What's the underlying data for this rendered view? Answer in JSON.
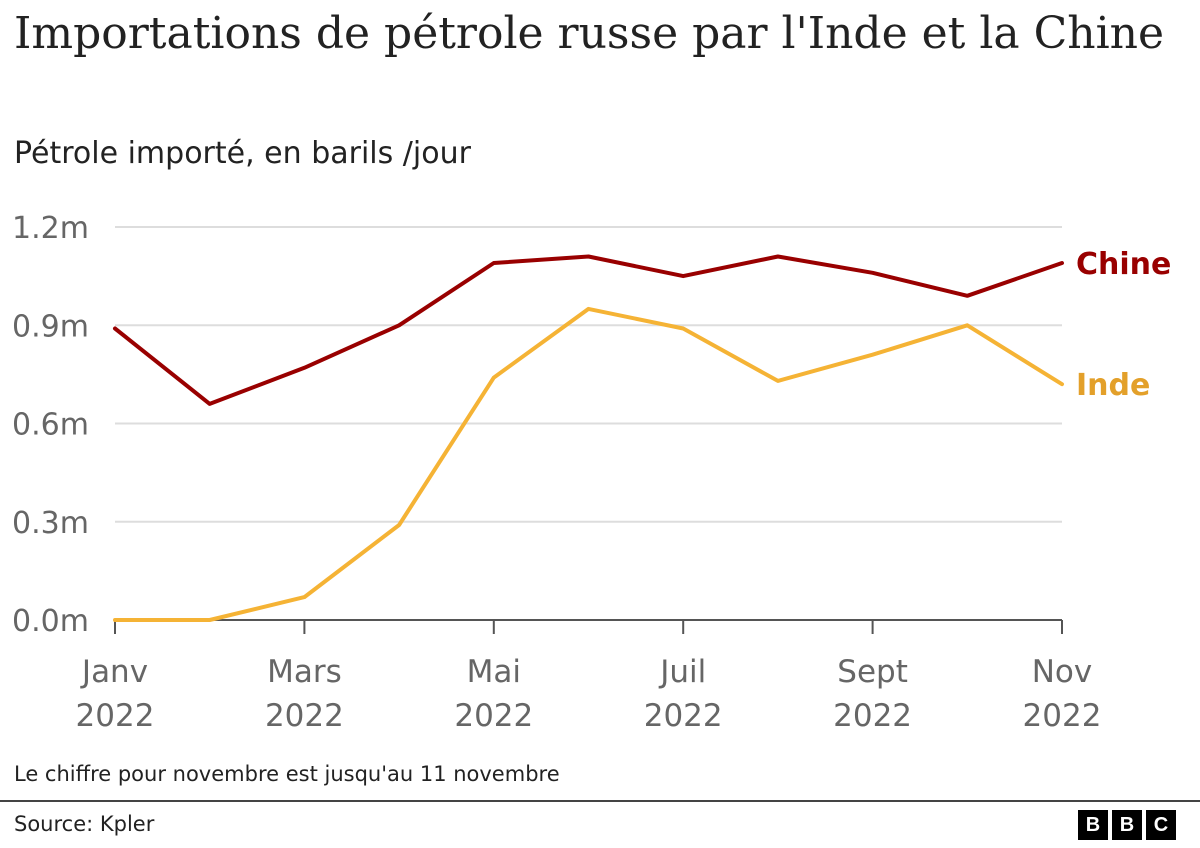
{
  "title": "Importations de pétrole russe par l'Inde et la Chine",
  "subtitle": "Pétrole importé, en barils /jour",
  "note": "Le chiffre pour novembre est jusqu'au 11 novembre",
  "source": "Source: Kpler",
  "logo": [
    "B",
    "B",
    "C"
  ],
  "chart_data": {
    "type": "line",
    "x": [
      "2022-01",
      "2022-02",
      "2022-03",
      "2022-04",
      "2022-05",
      "2022-06",
      "2022-07",
      "2022-08",
      "2022-09",
      "2022-10",
      "2022-11"
    ],
    "xticks": [
      {
        "month": "2022-01",
        "label1": "Janv",
        "label2": "2022"
      },
      {
        "month": "2022-03",
        "label1": "Mars",
        "label2": "2022"
      },
      {
        "month": "2022-05",
        "label1": "Mai",
        "label2": "2022"
      },
      {
        "month": "2022-07",
        "label1": "Juil",
        "label2": "2022"
      },
      {
        "month": "2022-09",
        "label1": "Sept",
        "label2": "2022"
      },
      {
        "month": "2022-11",
        "label1": "Nov",
        "label2": "2022"
      }
    ],
    "yticks": [
      {
        "value": 0.0,
        "label": "0.0m"
      },
      {
        "value": 0.3,
        "label": "0.3m"
      },
      {
        "value": 0.6,
        "label": "0.6m"
      },
      {
        "value": 0.9,
        "label": "0.9m"
      },
      {
        "value": 1.2,
        "label": "1.2m"
      }
    ],
    "ylim": [
      0,
      1.2
    ],
    "grid": true,
    "series": [
      {
        "name": "Chine",
        "color": "#990000",
        "values": [
          0.89,
          0.66,
          0.77,
          0.9,
          1.09,
          1.11,
          1.05,
          1.11,
          1.06,
          0.99,
          1.09
        ]
      },
      {
        "name": "Inde",
        "color": "#f5b335",
        "label_color": "#e3a02a",
        "values": [
          0.0,
          0.0,
          0.07,
          0.29,
          0.74,
          0.95,
          0.89,
          0.73,
          0.81,
          0.9,
          0.72
        ]
      }
    ]
  }
}
